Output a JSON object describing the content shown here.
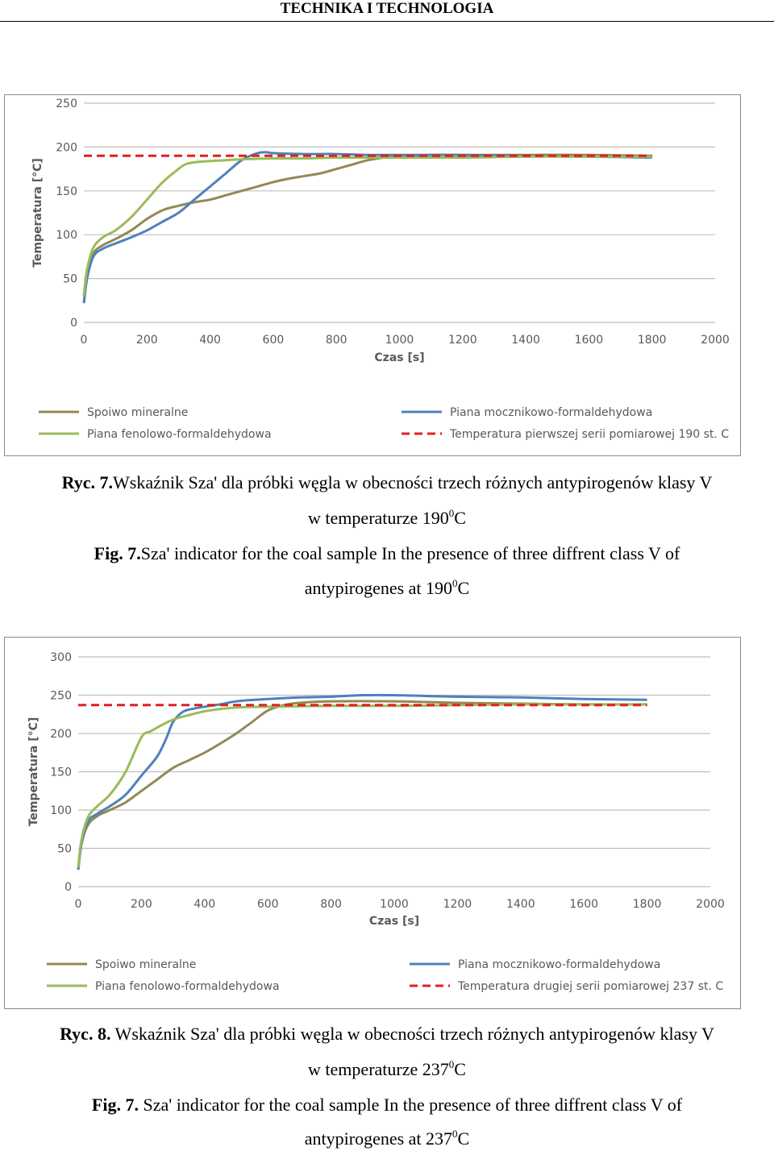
{
  "header": {
    "title": "TECHNIKA I TECHNOLOGIA"
  },
  "colors": {
    "spoiwo": "#938953",
    "mocznik": "#4f81bd",
    "fenol": "#9bbb59",
    "temperatura": "#e02020",
    "grid": "#bfbfbf"
  },
  "captions": {
    "c1": {
      "label_pl": "Ryc. 7.",
      "text_pl": "Wskaźnik Sza'  dla próbki węgla w obecności  trzech różnych antypirogenów klasy V",
      "line2_pl": "w temperaturze 190",
      "sup_pl": "0",
      "unit_pl": "C",
      "label_en": "Fig. 7.",
      "text_en": "Sza' indicator for the coal sample In the presence of three diffrent class V of",
      "line2_en": "antypirogenes at 190",
      "sup_en": "0",
      "unit_en": "C"
    },
    "c2": {
      "label_pl": "Ryc. 8.",
      "text_pl": " Wskaźnik Sza'  dla próbki węgla w obecności  trzech różnych antypirogenów klasy V",
      "line2_pl": "w temperaturze 237",
      "sup_pl": "0",
      "unit_pl": "C",
      "label_en": "Fig. 7.",
      "text_en": " Sza' indicator for the coal sample In the presence of three diffrent class V of",
      "line2_en": "antypirogenes at 237",
      "sup_en": "0",
      "unit_en": "C"
    }
  },
  "chart_data": [
    {
      "type": "line",
      "xlabel": "Czas [s]",
      "ylabel": "Temperatura [°C]",
      "xlim": [
        0,
        2000
      ],
      "ylim": [
        0,
        250
      ],
      "xticks": [
        0,
        200,
        400,
        600,
        800,
        1000,
        1200,
        1400,
        1600,
        1800,
        2000
      ],
      "yticks": [
        0,
        50,
        100,
        150,
        200,
        250
      ],
      "grid": true,
      "legend_position": "bottom",
      "series": [
        {
          "name": "Spoiwo mineralne",
          "color": "#938953",
          "dashed": false,
          "x": [
            0,
            10,
            30,
            60,
            100,
            150,
            200,
            250,
            300,
            350,
            400,
            450,
            500,
            550,
            600,
            650,
            700,
            750,
            800,
            850,
            900,
            950,
            1000,
            1100,
            1200,
            1400,
            1600,
            1800
          ],
          "y": [
            22,
            50,
            78,
            88,
            95,
            105,
            118,
            128,
            133,
            137,
            140,
            145,
            150,
            155,
            160,
            164,
            167,
            170,
            175,
            180,
            185,
            188,
            190,
            191,
            191,
            191,
            191,
            190
          ]
        },
        {
          "name": "Piana mocznikowo-formaldehydowa",
          "color": "#4f81bd",
          "dashed": false,
          "x": [
            0,
            10,
            30,
            60,
            100,
            150,
            200,
            250,
            300,
            350,
            400,
            450,
            500,
            550,
            580,
            600,
            700,
            800,
            900,
            1000,
            1100,
            1200,
            1400,
            1600,
            1800
          ],
          "y": [
            22,
            50,
            75,
            84,
            90,
            97,
            105,
            115,
            125,
            140,
            155,
            170,
            185,
            193,
            194,
            193,
            192,
            192,
            191,
            191,
            191,
            191,
            190,
            189,
            188
          ]
        },
        {
          "name": "Piana fenolowo-formaldehydowa",
          "color": "#9bbb59",
          "dashed": false,
          "x": [
            0,
            10,
            30,
            60,
            100,
            150,
            200,
            250,
            300,
            320,
            340,
            360,
            400,
            450,
            500,
            600,
            700,
            800,
            1000,
            1200,
            1400,
            1600,
            1800
          ],
          "y": [
            30,
            60,
            85,
            97,
            105,
            120,
            140,
            160,
            175,
            180,
            182,
            183,
            184,
            185,
            186,
            187,
            187,
            188,
            188,
            188,
            189,
            189,
            189
          ]
        },
        {
          "name": "Temperatura pierwszej serii pomiarowej 190 st. C",
          "color": "#e02020",
          "dashed": true,
          "x": [
            0,
            1800
          ],
          "y": [
            190,
            190
          ]
        }
      ]
    },
    {
      "type": "line",
      "xlabel": "Czas [s]",
      "ylabel": "Temperatura [°C]",
      "xlim": [
        0,
        2000
      ],
      "ylim": [
        0,
        300
      ],
      "xticks": [
        0,
        200,
        400,
        600,
        800,
        1000,
        1200,
        1400,
        1600,
        1800,
        2000
      ],
      "yticks": [
        0,
        50,
        100,
        150,
        200,
        250,
        300
      ],
      "grid": true,
      "legend_position": "bottom",
      "series": [
        {
          "name": "Spoiwo mineralne",
          "color": "#938953",
          "dashed": false,
          "x": [
            0,
            10,
            30,
            60,
            100,
            150,
            200,
            250,
            300,
            350,
            400,
            450,
            500,
            550,
            600,
            650,
            700,
            800,
            1000,
            1200,
            1400,
            1600,
            1800
          ],
          "y": [
            22,
            55,
            80,
            92,
            100,
            110,
            125,
            140,
            155,
            165,
            175,
            187,
            200,
            215,
            230,
            237,
            240,
            242,
            242,
            240,
            239,
            238,
            238
          ]
        },
        {
          "name": "Piana mocznikowo-formaldehydowa",
          "color": "#4f81bd",
          "dashed": false,
          "x": [
            0,
            10,
            30,
            60,
            100,
            150,
            200,
            250,
            280,
            300,
            330,
            360,
            400,
            450,
            500,
            600,
            700,
            800,
            900,
            1000,
            1100,
            1200,
            1400,
            1600,
            1800
          ],
          "y": [
            22,
            55,
            85,
            95,
            105,
            120,
            145,
            170,
            195,
            215,
            228,
            232,
            235,
            238,
            242,
            245,
            247,
            248,
            250,
            250,
            249,
            248,
            247,
            245,
            244
          ]
        },
        {
          "name": "Piana fenolowo-formaldehydowa",
          "color": "#9bbb59",
          "dashed": false,
          "x": [
            0,
            10,
            30,
            60,
            100,
            150,
            200,
            230,
            260,
            300,
            350,
            400,
            450,
            500,
            600,
            800,
            1000,
            1200,
            1400,
            1600,
            1800
          ],
          "y": [
            25,
            60,
            90,
            105,
            120,
            150,
            195,
            203,
            210,
            218,
            224,
            229,
            232,
            234,
            235,
            236,
            236,
            237,
            238,
            238,
            238
          ]
        },
        {
          "name": "Temperatura drugiej serii pomiarowej 237 st. C",
          "color": "#e02020",
          "dashed": true,
          "x": [
            0,
            1800
          ],
          "y": [
            237,
            237
          ]
        }
      ]
    }
  ]
}
